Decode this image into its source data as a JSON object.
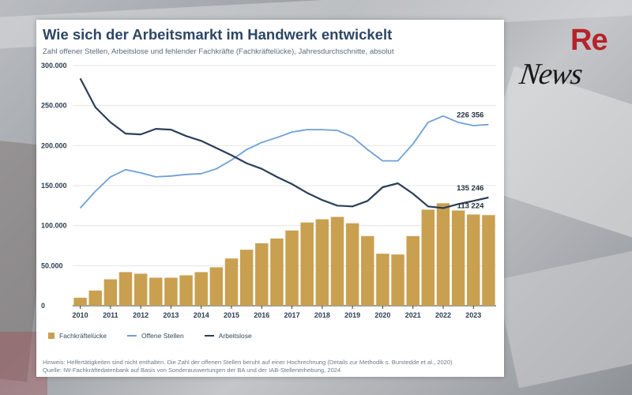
{
  "title": "Wie sich der Arbeitsmarkt im Handwerk entwickelt",
  "subtitle": "Zahl offener Stellen, Arbeitslose und fehlender Fachkräfte (Fachkräftelücke), Jahresdurchschnitte, absolut",
  "footnote": "Hinweis: Helfertätigkeiten sind nicht enthalten. Die Zahl der offenen Stellen beruht auf einer Hochrechnung (Details zur Methodik s. Burstedde et al., 2020)",
  "source": "Quelle: IW-Fachkräftedatenbank auf Basis von Sonderauswertungen der BA und der IAB-Stellenerhebung, 2024",
  "logo": {
    "re": "Re",
    "news": "News"
  },
  "colors": {
    "fachkraefteluecke": "#c9a050",
    "offene_stellen": "#6f9fd6",
    "arbeitslose": "#2c3f58",
    "title": "#2c4665"
  },
  "chart_data": {
    "type": "bar",
    "title": "Wie sich der Arbeitsmarkt im Handwerk entwickelt",
    "ylim": [
      0,
      300000
    ],
    "yticks": [
      "0",
      "50.000",
      "100.000",
      "150.000",
      "200.000",
      "250.000",
      "300.000"
    ],
    "ytick_values": [
      0,
      50000,
      100000,
      150000,
      200000,
      250000,
      300000
    ],
    "xticks": [
      "2010",
      "2011",
      "2012",
      "2013",
      "2014",
      "2015",
      "2016",
      "2017",
      "2018",
      "2019",
      "2020",
      "2021",
      "2022",
      "2023"
    ],
    "x_start": 2010,
    "x_end": 2023.75,
    "grid": true,
    "legend_position": "bottom",
    "x": [
      2010.0,
      2010.5,
      2011.0,
      2011.5,
      2012.0,
      2012.5,
      2013.0,
      2013.5,
      2014.0,
      2014.5,
      2015.0,
      2015.5,
      2016.0,
      2016.5,
      2017.0,
      2017.5,
      2018.0,
      2018.5,
      2019.0,
      2019.5,
      2020.0,
      2020.5,
      2021.0,
      2021.5,
      2022.0,
      2022.5,
      2023.0,
      2023.5
    ],
    "series": [
      {
        "name": "Fachkräftelücke",
        "kind": "bar",
        "color": "#c9a050",
        "values": [
          10000,
          19000,
          33000,
          42000,
          40000,
          35000,
          35000,
          38000,
          42000,
          48000,
          59000,
          70000,
          78000,
          84000,
          94000,
          104000,
          108000,
          111000,
          103000,
          87000,
          65000,
          64000,
          87000,
          120000,
          128000,
          119000,
          114000,
          113224
        ],
        "end_label": "113 224"
      },
      {
        "name": "Offene Stellen",
        "kind": "line",
        "color": "#6f9fd6",
        "values": [
          122000,
          143000,
          161000,
          170000,
          166000,
          161000,
          162000,
          164000,
          165000,
          171000,
          182000,
          195000,
          204000,
          210000,
          217000,
          220000,
          220000,
          219000,
          211000,
          195000,
          181000,
          181000,
          202000,
          229000,
          237000,
          229000,
          225000,
          226356
        ],
        "end_label": "226 356"
      },
      {
        "name": "Arbeitslose",
        "kind": "line",
        "color": "#2c3f58",
        "values": [
          284000,
          248000,
          229000,
          215000,
          214000,
          221000,
          220000,
          212000,
          206000,
          197000,
          188000,
          178000,
          171000,
          161000,
          152000,
          141000,
          132000,
          125000,
          124000,
          131000,
          148000,
          153000,
          140000,
          124000,
          122000,
          127000,
          131000,
          135246
        ],
        "end_label": "135 246"
      }
    ]
  }
}
